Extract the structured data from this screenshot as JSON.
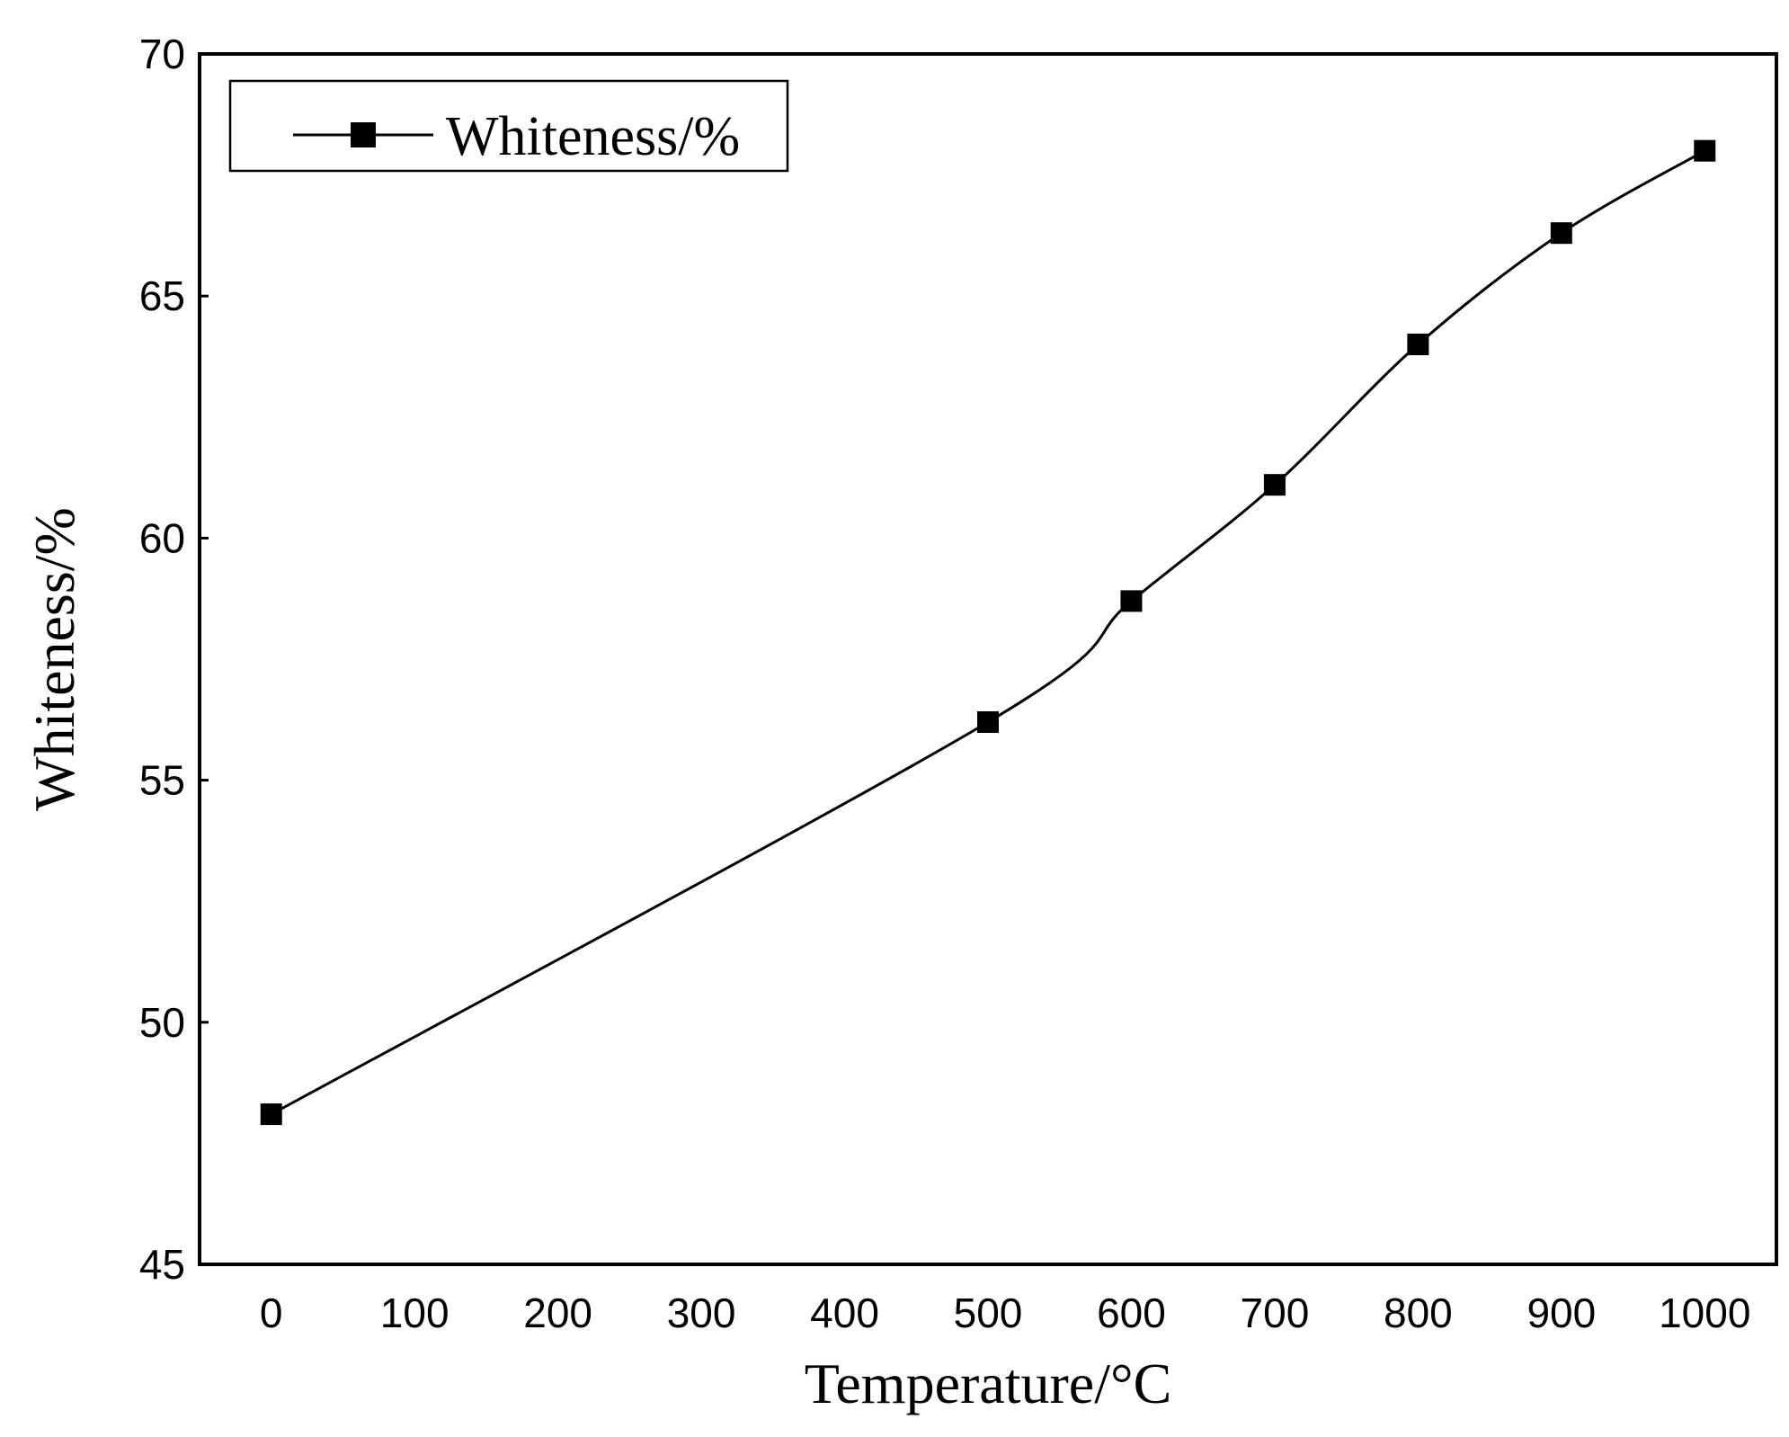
{
  "chart_data": {
    "type": "line",
    "title": "",
    "xlabel": "Temperature/°C",
    "ylabel": "Whiteness/%",
    "xlim": [
      -50,
      1050
    ],
    "ylim": [
      45,
      70
    ],
    "x_ticks": [
      0,
      100,
      200,
      300,
      400,
      500,
      600,
      700,
      800,
      900,
      1000
    ],
    "y_ticks": [
      45,
      50,
      55,
      60,
      65,
      70
    ],
    "grid": false,
    "legend_position": "top-left",
    "series": [
      {
        "name": "Whiteness/%",
        "marker": "square",
        "color": "#000000",
        "smooth": true,
        "x": [
          0,
          500,
          600,
          700,
          800,
          900,
          1000
        ],
        "y": [
          48.1,
          56.2,
          58.7,
          61.1,
          64.0,
          66.3,
          68.0
        ]
      }
    ]
  }
}
